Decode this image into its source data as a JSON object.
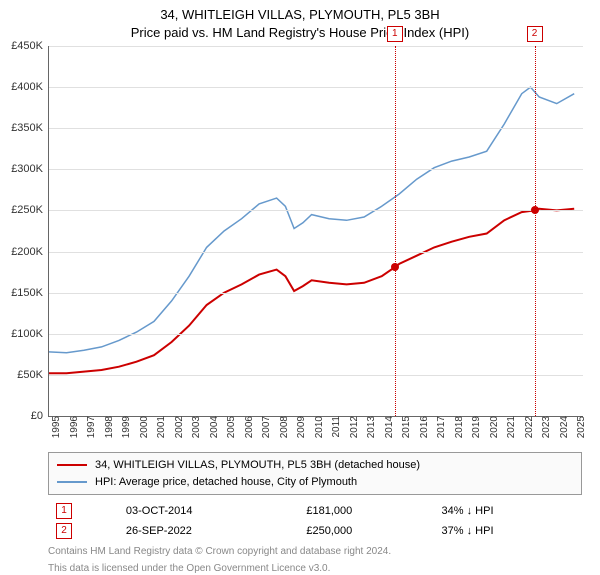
{
  "title": "34, WHITLEIGH VILLAS, PLYMOUTH, PL5 3BH",
  "subtitle": "Price paid vs. HM Land Registry's House Price Index (HPI)",
  "chart": {
    "type": "line",
    "background_color": "#ffffff",
    "grid_color": "#e0e0e0",
    "axis_color": "#666666",
    "ylim": [
      0,
      450000
    ],
    "ytick_step": 50000,
    "ytick_prefix": "£",
    "ytick_suffix": "K",
    "ytick_divisor": 1000,
    "ylabels": [
      "£0",
      "£50K",
      "£100K",
      "£150K",
      "£200K",
      "£250K",
      "£300K",
      "£350K",
      "£400K",
      "£450K"
    ],
    "xlim": [
      1995,
      2025.5
    ],
    "xticks": [
      1995,
      1996,
      1997,
      1998,
      1999,
      2000,
      2001,
      2002,
      2003,
      2004,
      2005,
      2006,
      2007,
      2008,
      2009,
      2010,
      2011,
      2012,
      2013,
      2014,
      2015,
      2016,
      2017,
      2018,
      2019,
      2020,
      2021,
      2022,
      2023,
      2024,
      2025
    ],
    "series": [
      {
        "name": "property",
        "label": "34, WHITLEIGH VILLAS, PLYMOUTH, PL5 3BH (detached house)",
        "color": "#cc0000",
        "line_width": 2,
        "data": [
          [
            1995,
            52000
          ],
          [
            1996,
            52000
          ],
          [
            1997,
            54000
          ],
          [
            1998,
            56000
          ],
          [
            1999,
            60000
          ],
          [
            2000,
            66000
          ],
          [
            2001,
            74000
          ],
          [
            2002,
            90000
          ],
          [
            2003,
            110000
          ],
          [
            2004,
            135000
          ],
          [
            2005,
            150000
          ],
          [
            2006,
            160000
          ],
          [
            2007,
            172000
          ],
          [
            2008,
            178000
          ],
          [
            2008.5,
            170000
          ],
          [
            2009,
            152000
          ],
          [
            2009.5,
            158000
          ],
          [
            2010,
            165000
          ],
          [
            2011,
            162000
          ],
          [
            2012,
            160000
          ],
          [
            2013,
            162000
          ],
          [
            2014,
            170000
          ],
          [
            2014.75,
            181000
          ],
          [
            2015,
            185000
          ],
          [
            2016,
            195000
          ],
          [
            2017,
            205000
          ],
          [
            2018,
            212000
          ],
          [
            2019,
            218000
          ],
          [
            2020,
            222000
          ],
          [
            2021,
            238000
          ],
          [
            2022,
            248000
          ],
          [
            2022.73,
            250000
          ],
          [
            2023,
            252000
          ],
          [
            2024,
            250000
          ],
          [
            2025,
            252000
          ]
        ]
      },
      {
        "name": "hpi",
        "label": "HPI: Average price, detached house, City of Plymouth",
        "color": "#6699cc",
        "line_width": 1.5,
        "data": [
          [
            1995,
            78000
          ],
          [
            1996,
            77000
          ],
          [
            1997,
            80000
          ],
          [
            1998,
            84000
          ],
          [
            1999,
            92000
          ],
          [
            2000,
            102000
          ],
          [
            2001,
            115000
          ],
          [
            2002,
            140000
          ],
          [
            2003,
            170000
          ],
          [
            2004,
            205000
          ],
          [
            2005,
            225000
          ],
          [
            2006,
            240000
          ],
          [
            2007,
            258000
          ],
          [
            2008,
            265000
          ],
          [
            2008.5,
            255000
          ],
          [
            2009,
            228000
          ],
          [
            2009.5,
            235000
          ],
          [
            2010,
            245000
          ],
          [
            2011,
            240000
          ],
          [
            2012,
            238000
          ],
          [
            2013,
            242000
          ],
          [
            2014,
            255000
          ],
          [
            2015,
            270000
          ],
          [
            2016,
            288000
          ],
          [
            2017,
            302000
          ],
          [
            2018,
            310000
          ],
          [
            2019,
            315000
          ],
          [
            2020,
            322000
          ],
          [
            2021,
            355000
          ],
          [
            2022,
            392000
          ],
          [
            2022.5,
            400000
          ],
          [
            2023,
            388000
          ],
          [
            2024,
            380000
          ],
          [
            2025,
            392000
          ]
        ]
      }
    ],
    "markers": [
      {
        "num": "1",
        "x": 2014.75,
        "y": 181000
      },
      {
        "num": "2",
        "x": 2022.73,
        "y": 250000
      }
    ]
  },
  "sales": [
    {
      "num": "1",
      "date": "03-OCT-2014",
      "price": "£181,000",
      "vs_hpi": "34% ↓ HPI"
    },
    {
      "num": "2",
      "date": "26-SEP-2022",
      "price": "£250,000",
      "vs_hpi": "37% ↓ HPI"
    }
  ],
  "footnote1": "Contains HM Land Registry data © Crown copyright and database right 2024.",
  "footnote2": "This data is licensed under the Open Government Licence v3.0."
}
